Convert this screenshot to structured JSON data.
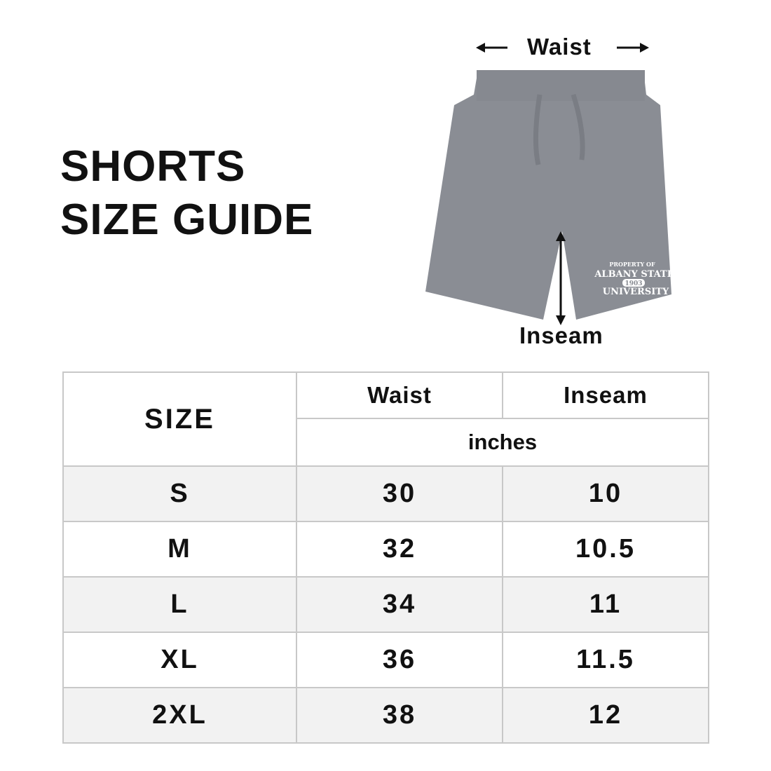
{
  "title_line1": "SHORTS",
  "title_line2": "SIZE GUIDE",
  "diagram": {
    "waist_label": "Waist",
    "inseam_label": "Inseam",
    "product_color": "#8a8d94",
    "print": {
      "line1": "PROPERTY OF",
      "line2": "ALBANY STATE",
      "line3": "1903",
      "line4": "UNIVERSITY"
    }
  },
  "table": {
    "size_header": "SIZE",
    "columns": [
      "Waist",
      "Inseam"
    ],
    "unit": "inches",
    "rows": [
      {
        "size": "S",
        "waist": "30",
        "inseam": "10"
      },
      {
        "size": "M",
        "waist": "32",
        "inseam": "10.5"
      },
      {
        "size": "L",
        "waist": "34",
        "inseam": "11"
      },
      {
        "size": "XL",
        "waist": "36",
        "inseam": "11.5"
      },
      {
        "size": "2XL",
        "waist": "38",
        "inseam": "12"
      }
    ]
  }
}
